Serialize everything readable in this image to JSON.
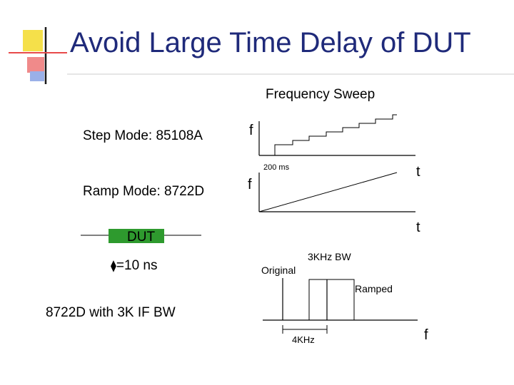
{
  "slide": {
    "title": "Avoid Large Time Delay of DUT"
  },
  "sweep": {
    "heading": "Frequency Sweep",
    "step_mode_label": "Step Mode: 85108A",
    "ramp_mode_label": "Ramp Mode: 8722D",
    "step_axis_y": "f",
    "step_axis_x": "t",
    "ramp_axis_y": "f",
    "ramp_axis_x": "t",
    "sweep_time": "200 ms"
  },
  "dut": {
    "label": "DUT",
    "delay": "=10 ns",
    "delay_symbol": "⧫"
  },
  "spectrum": {
    "instrument_label": "8722D with 3K IF BW",
    "original_label": "Original",
    "bw_label": "3KHz BW",
    "ramped_label": "Ramped",
    "offset_label": "4KHz",
    "axis_x": "f"
  },
  "colors": {
    "title": "#1f2a7a",
    "dut_box": "#2e9a2e",
    "logo_yellow": "#f5e04a",
    "logo_red": "#e84a4a",
    "logo_blue": "#3a5fc8"
  }
}
